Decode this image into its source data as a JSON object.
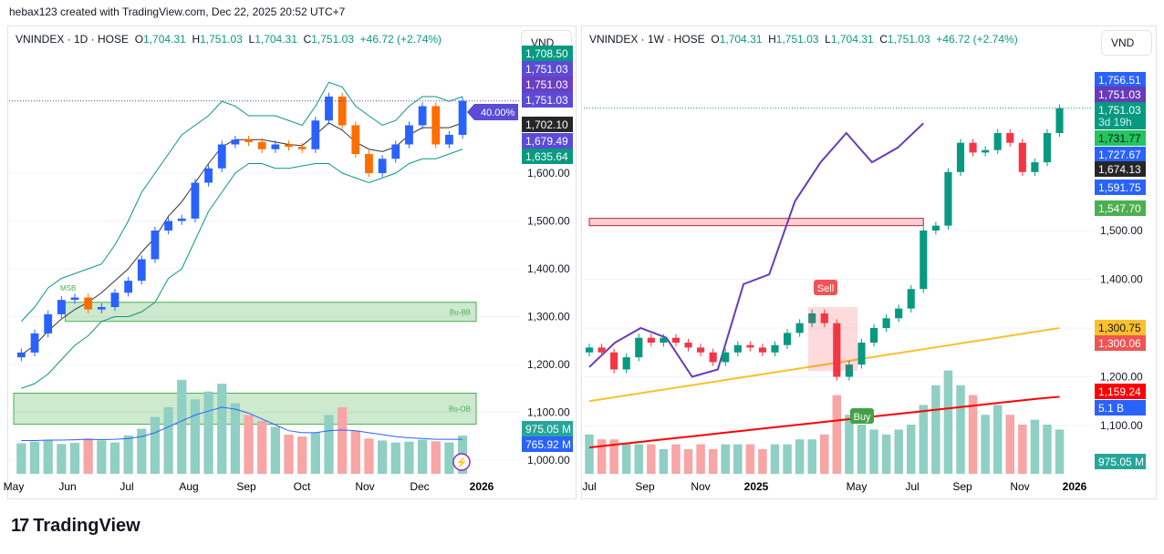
{
  "credit": "hebax123 created with TradingView.com, Dec 22, 2025 20:52 UTC+7",
  "logo": "TradingView",
  "colors": {
    "up": "#089981",
    "down": "#f23645",
    "volUp": "#8fcfc4",
    "volDown": "#f7a5a5",
    "purple": "#673ab7",
    "blue": "#2962ff",
    "zone": "#4caf50"
  },
  "left": {
    "symbol": "VNINDEX · 1D · HOSE",
    "o_label": "O",
    "o": "1,704.31",
    "h_label": "H",
    "h": "1,751.03",
    "l_label": "L",
    "l": "1,704.31",
    "c_label": "C",
    "c": "1,751.03",
    "change": "+46.72 (+2.74%)",
    "currency": "VND",
    "percent_tag": "40.00%",
    "zone_bb": "Bu-BB",
    "zone_ob": "Bu-OB",
    "msb": "MSB",
    "price_ticks": [
      "1,600.00",
      "1,500.00",
      "1,400.00",
      "1,300.00",
      "1,200.00",
      "1,100.00",
      "1,000.00"
    ],
    "tags": [
      {
        "t": "1,708.50",
        "bg": "#089981"
      },
      {
        "t": "1,751.03",
        "bg": "#5b4bd6"
      },
      {
        "t": "1,751.03",
        "bg": "#6a3fc0"
      },
      {
        "t": "1,751.03",
        "bg": "#5b4bd6"
      },
      {
        "t": "1,702.10",
        "bg": "#262626"
      },
      {
        "t": "1,679.49",
        "bg": "#5b4bd6"
      },
      {
        "t": "1,635.64",
        "bg": "#089981"
      },
      {
        "t": "975.05 M",
        "bg": "#26a69a"
      },
      {
        "t": "765.92 M",
        "bg": "#2962ff"
      }
    ],
    "time_ticks": [
      "May",
      "Jun",
      "Jul",
      "Aug",
      "Sep",
      "Oct",
      "Nov",
      "Dec",
      "2026"
    ]
  },
  "right": {
    "symbol": "VNINDEX · 1W · HOSE",
    "o_label": "O",
    "o": "1,704.31",
    "h_label": "H",
    "h": "1,751.03",
    "l_label": "L",
    "l": "1,704.31",
    "c_label": "C",
    "c": "1,751.03",
    "change": "+46.72 (+2.74%)",
    "currency": "VND",
    "sell": "Sell",
    "buy": "Buy",
    "price_ticks": [
      "1,500.00",
      "1,400.00",
      "1,200.00",
      "1,100.00"
    ],
    "tags": [
      {
        "t": "1,756.51",
        "bg": "#2962ff"
      },
      {
        "t": "1,751.03",
        "bg": "#673ab7"
      },
      {
        "t": "1,751.03",
        "bg": "#089981",
        "sub": "3d 19h"
      },
      {
        "t": "1,731.77",
        "bg": "#22c55e",
        "fg": "#131722"
      },
      {
        "t": "1,727.67",
        "bg": "#2962ff"
      },
      {
        "t": "1,674.13",
        "bg": "#262626"
      },
      {
        "t": "1,591.75",
        "bg": "#2962ff"
      },
      {
        "t": "1,547.70",
        "bg": "#4caf50"
      },
      {
        "t": "1,300.75",
        "bg": "#fbc02d",
        "fg": "#131722"
      },
      {
        "t": "1,300.06",
        "bg": "#f05454"
      },
      {
        "t": "1,159.24",
        "bg": "#ff0000"
      },
      {
        "t": "5.1 B",
        "bg": "#2962ff"
      },
      {
        "t": "975.05 M",
        "bg": "#26a69a"
      }
    ],
    "time_ticks": [
      "Jul",
      "Sep",
      "Nov",
      "2025",
      "May",
      "Jul",
      "Sep",
      "Nov",
      "2026"
    ]
  },
  "chart_data": [
    {
      "type": "candlestick",
      "title": "VNINDEX · 1D · HOSE",
      "yrange": [
        1000,
        1780
      ],
      "dates": [
        "2025-05-05",
        "2025-05-12",
        "2025-05-19",
        "2025-05-26",
        "2025-06-02",
        "2025-06-09",
        "2025-06-16",
        "2025-06-23",
        "2025-06-30",
        "2025-07-07",
        "2025-07-14",
        "2025-07-21",
        "2025-07-28",
        "2025-08-04",
        "2025-08-11",
        "2025-08-18",
        "2025-08-25",
        "2025-09-01",
        "2025-09-08",
        "2025-09-15",
        "2025-09-22",
        "2025-09-29",
        "2025-10-06",
        "2025-10-13",
        "2025-10-20",
        "2025-10-27",
        "2025-11-03",
        "2025-11-10",
        "2025-11-17",
        "2025-11-24",
        "2025-12-01",
        "2025-12-08",
        "2025-12-15",
        "2025-12-22"
      ],
      "close": [
        1225,
        1265,
        1305,
        1335,
        1340,
        1315,
        1320,
        1350,
        1375,
        1420,
        1480,
        1500,
        1505,
        1580,
        1610,
        1660,
        1670,
        1665,
        1650,
        1660,
        1655,
        1650,
        1710,
        1760,
        1700,
        1640,
        1600,
        1630,
        1660,
        1700,
        1740,
        1660,
        1680,
        1751
      ],
      "volume_m": [
        780,
        820,
        870,
        760,
        790,
        900,
        850,
        800,
        980,
        1150,
        1450,
        1700,
        2400,
        1900,
        2100,
        2300,
        1800,
        1500,
        1350,
        1200,
        1000,
        950,
        1050,
        1500,
        1700,
        1100,
        900,
        850,
        800,
        820,
        870,
        830,
        800,
        975
      ],
      "volume_ma_m": [
        850,
        850,
        860,
        860,
        870,
        880,
        870,
        880,
        900,
        950,
        1050,
        1200,
        1350,
        1500,
        1600,
        1700,
        1650,
        1550,
        1400,
        1250,
        1100,
        1050,
        1050,
        1100,
        1120,
        1100,
        1050,
        1000,
        950,
        920,
        900,
        880,
        880,
        880
      ],
      "bb_upper": [
        1290,
        1320,
        1360,
        1380,
        1390,
        1400,
        1410,
        1450,
        1500,
        1560,
        1600,
        1640,
        1680,
        1700,
        1720,
        1750,
        1740,
        1720,
        1720,
        1720,
        1710,
        1700,
        1740,
        1790,
        1780,
        1740,
        1720,
        1700,
        1710,
        1740,
        1760,
        1760,
        1750,
        1760
      ],
      "bb_lower": [
        1150,
        1160,
        1180,
        1210,
        1240,
        1260,
        1290,
        1300,
        1300,
        1310,
        1330,
        1380,
        1400,
        1460,
        1520,
        1560,
        1600,
        1620,
        1620,
        1610,
        1610,
        1615,
        1620,
        1620,
        1600,
        1590,
        1580,
        1590,
        1600,
        1620,
        1630,
        1630,
        1640,
        1650
      ],
      "zones": [
        {
          "label": "Bu-BB",
          "from": 1290,
          "to": 1330,
          "start": "2025-05-28"
        },
        {
          "label": "Bu-OB",
          "from": 1075,
          "to": 1140,
          "start": "2025-05-01"
        }
      ]
    },
    {
      "type": "candlestick",
      "title": "VNINDEX · 1W · HOSE",
      "yrange": [
        1000,
        1800
      ],
      "dates": [
        "2024-07-01",
        "2024-07-15",
        "2024-07-29",
        "2024-08-12",
        "2024-08-26",
        "2024-09-09",
        "2024-09-23",
        "2024-10-07",
        "2024-10-21",
        "2024-11-04",
        "2024-11-18",
        "2024-12-02",
        "2024-12-16",
        "2024-12-30",
        "2025-01-13",
        "2025-01-27",
        "2025-02-10",
        "2025-02-24",
        "2025-03-10",
        "2025-03-24",
        "2025-04-07",
        "2025-04-21",
        "2025-05-05",
        "2025-05-19",
        "2025-06-02",
        "2025-06-16",
        "2025-06-30",
        "2025-07-14",
        "2025-07-28",
        "2025-08-11",
        "2025-08-25",
        "2025-09-08",
        "2025-09-22",
        "2025-10-06",
        "2025-10-20",
        "2025-11-03",
        "2025-11-17",
        "2025-12-01",
        "2025-12-15"
      ],
      "close": [
        1260,
        1250,
        1215,
        1240,
        1280,
        1270,
        1280,
        1270,
        1260,
        1250,
        1230,
        1250,
        1265,
        1260,
        1250,
        1265,
        1290,
        1310,
        1330,
        1310,
        1200,
        1225,
        1270,
        1300,
        1320,
        1340,
        1380,
        1500,
        1510,
        1620,
        1680,
        1660,
        1665,
        1700,
        1680,
        1620,
        1640,
        1700,
        1751
      ],
      "volume_b": [
        4,
        3.5,
        3.5,
        3,
        3,
        3,
        2.5,
        3,
        2.5,
        3,
        2.5,
        3,
        3,
        3,
        2.5,
        3,
        3,
        3.5,
        3.5,
        4,
        8,
        6,
        5,
        4.5,
        4,
        4.5,
        5,
        7,
        9,
        10.5,
        9,
        8,
        6,
        7,
        6,
        5,
        5.5,
        5,
        4.5
      ],
      "ma_yellow": [
        1150,
        1155,
        1160,
        1165,
        1170,
        1175,
        1180,
        1185,
        1190,
        1195,
        1200,
        1205,
        1210,
        1215,
        1220,
        1225,
        1230,
        1235,
        1240,
        1245,
        1250,
        1255,
        1260,
        1265,
        1270,
        1275,
        1280,
        1285,
        1290,
        1295,
        1300
      ],
      "ma_red": [
        1055,
        1060,
        1065,
        1070,
        1075,
        1080,
        1085,
        1090,
        1095,
        1100,
        1105,
        1110,
        1115,
        1120,
        1125,
        1130,
        1135,
        1140,
        1145,
        1150,
        1155,
        1159
      ],
      "purple_overlay": [
        1220,
        1270,
        1300,
        1280,
        1200,
        1215,
        1390,
        1410,
        1560,
        1640,
        1700,
        1640,
        1670,
        1720
      ],
      "zones": [
        {
          "from": 1510,
          "to": 1525,
          "start": "2024-07-01",
          "end": "2025-07-14"
        }
      ],
      "signals": [
        {
          "label": "Sell",
          "date": "2025-04-07"
        },
        {
          "label": "Buy",
          "date": "2025-05-05"
        }
      ]
    }
  ]
}
